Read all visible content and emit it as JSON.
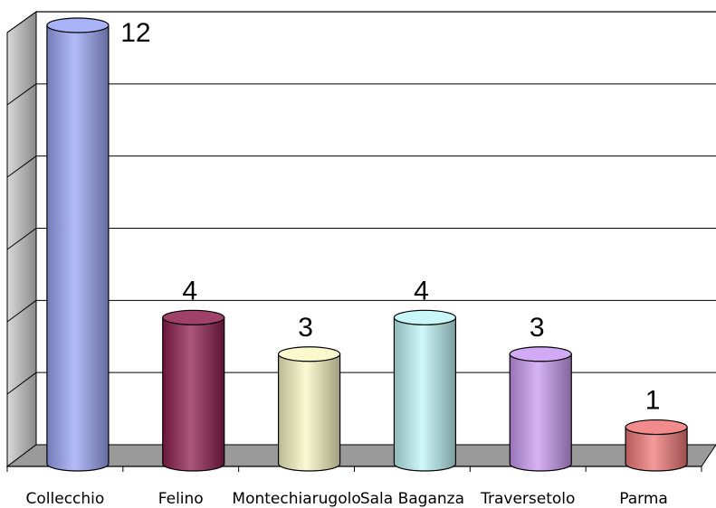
{
  "chart_data": {
    "type": "bar",
    "style": "3d-cylinder",
    "categories": [
      "Collecchio",
      "Felino",
      "Montechiarugolo",
      "Sala Baganza",
      "Traversetolo",
      "Parma"
    ],
    "values": [
      12,
      4,
      3,
      4,
      3,
      1
    ],
    "data_labels": [
      "12",
      "4",
      "3",
      "4",
      "3",
      "1"
    ],
    "colors": [
      "#9aa6f5",
      "#8e1f4f",
      "#f8f8c4",
      "#bff5f7",
      "#c99af2",
      "#f07878"
    ],
    "title": "",
    "xlabel": "",
    "ylabel": "",
    "ylim": [
      0,
      12
    ],
    "grid": true,
    "legend": "none"
  }
}
